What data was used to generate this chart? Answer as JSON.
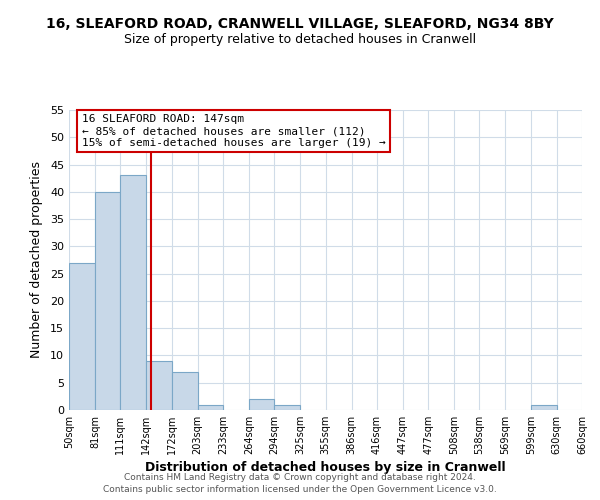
{
  "title_line1": "16, SLEAFORD ROAD, CRANWELL VILLAGE, SLEAFORD, NG34 8BY",
  "title_line2": "Size of property relative to detached houses in Cranwell",
  "xlabel": "Distribution of detached houses by size in Cranwell",
  "ylabel": "Number of detached properties",
  "bin_edges": [
    50,
    81,
    111,
    142,
    172,
    203,
    233,
    264,
    294,
    325,
    355,
    386,
    416,
    447,
    477,
    508,
    538,
    569,
    599,
    630,
    660
  ],
  "bar_heights": [
    27,
    40,
    43,
    9,
    7,
    1,
    0,
    2,
    1,
    0,
    0,
    0,
    0,
    0,
    0,
    0,
    0,
    0,
    1,
    0
  ],
  "bar_color": "#c8d8e8",
  "bar_edgecolor": "#7ba7c7",
  "reference_line_x": 147,
  "ylim": [
    0,
    55
  ],
  "yticks": [
    0,
    5,
    10,
    15,
    20,
    25,
    30,
    35,
    40,
    45,
    50,
    55
  ],
  "tick_labels": [
    "50sqm",
    "81sqm",
    "111sqm",
    "142sqm",
    "172sqm",
    "203sqm",
    "233sqm",
    "264sqm",
    "294sqm",
    "325sqm",
    "355sqm",
    "386sqm",
    "416sqm",
    "447sqm",
    "477sqm",
    "508sqm",
    "538sqm",
    "569sqm",
    "599sqm",
    "630sqm",
    "660sqm"
  ],
  "annotation_title": "16 SLEAFORD ROAD: 147sqm",
  "annotation_line1": "← 85% of detached houses are smaller (112)",
  "annotation_line2": "15% of semi-detached houses are larger (19) →",
  "ref_line_color": "#cc0000",
  "annotation_box_edgecolor": "#cc0000",
  "footer_line1": "Contains HM Land Registry data © Crown copyright and database right 2024.",
  "footer_line2": "Contains public sector information licensed under the Open Government Licence v3.0.",
  "background_color": "#ffffff",
  "grid_color": "#d0dce8"
}
